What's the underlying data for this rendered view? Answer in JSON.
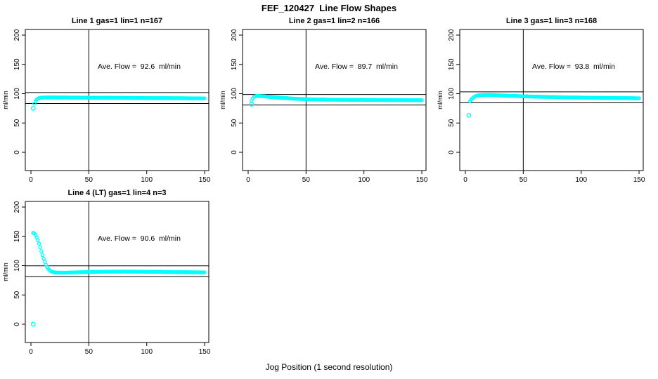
{
  "page": {
    "main_title": "FEF_120427  Line Flow Shapes",
    "x_axis_label": "Jog Position (1 second resolution)"
  },
  "colors": {
    "points": "#00ffff",
    "axis": "#000000",
    "background": "#ffffff"
  },
  "chart_data": [
    {
      "type": "scatter",
      "title": "Line 1 gas=1 lin=1 n=167",
      "n": 167,
      "ave_flow": 92.6,
      "ave_flow_label": "Ave. Flow =  92.6  ml/min",
      "ylabel": "ml/min",
      "yticks": [
        0,
        50,
        100,
        150,
        200
      ],
      "xticks": [
        0,
        50,
        100,
        150
      ],
      "xlim": [
        0,
        153
      ],
      "ylim": [
        0,
        200
      ],
      "vline_x": 50,
      "ref_line_upper": 101.9,
      "ref_line_lower": 83.3,
      "outliers": [
        [
          2,
          75
        ]
      ],
      "curve": {
        "x": [
          3,
          4,
          5,
          6,
          7,
          8,
          10,
          15,
          20,
          30,
          40,
          50,
          60,
          70,
          80,
          90,
          100,
          110,
          120,
          130,
          140,
          150
        ],
        "y": [
          83,
          87.5,
          90,
          91.5,
          92.5,
          93,
          93.4,
          93.6,
          93.6,
          93.5,
          93.4,
          93.2,
          93.1,
          93,
          92.9,
          92.7,
          92.6,
          92.5,
          92.4,
          92.3,
          92.1,
          92
        ]
      }
    },
    {
      "type": "scatter",
      "title": "Line 2 gas=1 lin=2 n=166",
      "n": 166,
      "ave_flow": 89.7,
      "ave_flow_label": "Ave. Flow =  89.7  ml/min",
      "ylabel": "ml/min",
      "yticks": [
        0,
        50,
        100,
        150,
        200
      ],
      "xticks": [
        0,
        50,
        100,
        150
      ],
      "xlim": [
        0,
        153
      ],
      "ylim": [
        0,
        200
      ],
      "vline_x": 50,
      "ref_line_upper": 98.7,
      "ref_line_lower": 80.7,
      "outliers": [
        [
          3,
          82
        ]
      ],
      "curve": {
        "x": [
          3,
          4,
          5,
          6,
          7,
          8,
          10,
          14,
          20,
          25,
          30,
          40,
          50,
          60,
          70,
          80,
          90,
          100,
          110,
          120,
          130,
          140,
          150
        ],
        "y": [
          88,
          92,
          94.5,
          95.5,
          96,
          96.2,
          96,
          95.4,
          94.3,
          93.5,
          92.8,
          91.5,
          90.6,
          90.1,
          89.8,
          89.6,
          89.5,
          89.4,
          89.3,
          89.2,
          89.1,
          89,
          88.9
        ]
      }
    },
    {
      "type": "scatter",
      "title": "Line 3 gas=1 lin=3 n=168",
      "n": 168,
      "ave_flow": 93.8,
      "ave_flow_label": "Ave. Flow =  93.8  ml/min",
      "ylabel": "ml/min",
      "yticks": [
        0,
        50,
        100,
        150,
        200
      ],
      "xticks": [
        0,
        50,
        100,
        150
      ],
      "xlim": [
        0,
        153
      ],
      "ylim": [
        0,
        200
      ],
      "vline_x": 50,
      "ref_line_upper": 103.2,
      "ref_line_lower": 84.4,
      "outliers": [
        [
          3,
          63
        ]
      ],
      "curve": {
        "x": [
          4,
          5,
          6,
          7,
          8,
          10,
          12,
          16,
          20,
          25,
          30,
          40,
          50,
          60,
          70,
          80,
          90,
          100,
          110,
          120,
          130,
          140,
          150
        ],
        "y": [
          87,
          90,
          92,
          93.5,
          95,
          96.5,
          97.3,
          97.9,
          98,
          97.7,
          97.2,
          96.3,
          95.6,
          95,
          94.5,
          94.1,
          93.7,
          93.4,
          93.1,
          92.8,
          92.6,
          92.4,
          92.2
        ]
      }
    },
    {
      "type": "scatter",
      "title": "Line 4 (LT) gas=1 lin=4 n=3",
      "n": 3,
      "ave_flow": 90.6,
      "ave_flow_label": "Ave. Flow =  90.6  ml/min",
      "ylabel": "ml/min",
      "yticks": [
        0,
        50,
        100,
        150,
        200
      ],
      "xticks": [
        0,
        50,
        100,
        150
      ],
      "xlim": [
        0,
        153
      ],
      "ylim": [
        0,
        200
      ],
      "vline_x": 50,
      "ref_line_upper": 99.7,
      "ref_line_lower": 81.5,
      "outliers": [
        [
          2,
          0
        ]
      ],
      "curve": {
        "x": [
          2,
          3,
          4,
          5,
          6,
          7,
          8,
          9,
          10,
          11,
          12,
          13,
          14,
          15,
          16,
          17,
          18,
          20,
          22,
          25,
          30,
          35,
          40,
          50,
          60,
          70,
          80,
          90,
          100,
          110,
          120,
          130,
          140,
          150
        ],
        "y": [
          156,
          155,
          152.5,
          148.5,
          143.5,
          137.5,
          131,
          124.5,
          118,
          112,
          106.5,
          101.5,
          97.5,
          94.5,
          92.5,
          91,
          90,
          88.8,
          88.3,
          88,
          88,
          88.3,
          88.6,
          89.2,
          89.6,
          89.8,
          89.9,
          89.8,
          89.6,
          89.4,
          89.1,
          88.9,
          88.7,
          88.5
        ]
      }
    }
  ]
}
